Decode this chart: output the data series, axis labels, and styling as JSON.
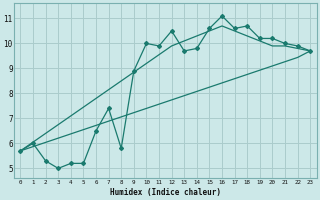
{
  "xlabel": "Humidex (Indice chaleur)",
  "bg_color": "#cce8e8",
  "grid_color": "#aacccc",
  "line_color": "#1a7a6e",
  "xlim": [
    -0.5,
    23.5
  ],
  "ylim": [
    4.6,
    11.6
  ],
  "xticks": [
    0,
    1,
    2,
    3,
    4,
    5,
    6,
    7,
    8,
    9,
    10,
    11,
    12,
    13,
    14,
    15,
    16,
    17,
    18,
    19,
    20,
    21,
    22,
    23
  ],
  "yticks": [
    5,
    6,
    7,
    8,
    9,
    10,
    11
  ],
  "x": [
    0,
    1,
    2,
    3,
    4,
    5,
    6,
    7,
    8,
    9,
    10,
    11,
    12,
    13,
    14,
    15,
    16,
    17,
    18,
    19,
    20,
    21,
    22,
    23
  ],
  "line_main": [
    5.7,
    6.0,
    5.3,
    5.0,
    5.2,
    5.2,
    6.5,
    7.4,
    5.8,
    8.9,
    10.0,
    9.9,
    10.5,
    9.7,
    9.8,
    10.6,
    11.1,
    10.6,
    10.7,
    10.2,
    10.2,
    10.0,
    9.9,
    9.7
  ],
  "line_low": [
    5.7,
    5.87,
    6.04,
    6.21,
    6.38,
    6.55,
    6.72,
    6.89,
    7.06,
    7.23,
    7.4,
    7.57,
    7.74,
    7.91,
    8.08,
    8.25,
    8.42,
    8.59,
    8.76,
    8.93,
    9.1,
    9.27,
    9.44,
    9.7
  ],
  "line_high": [
    5.7,
    6.05,
    6.4,
    6.75,
    7.1,
    7.45,
    7.8,
    8.15,
    8.5,
    8.85,
    9.2,
    9.55,
    9.9,
    10.1,
    10.3,
    10.5,
    10.7,
    10.5,
    10.3,
    10.1,
    9.9,
    9.9,
    9.8,
    9.7
  ]
}
